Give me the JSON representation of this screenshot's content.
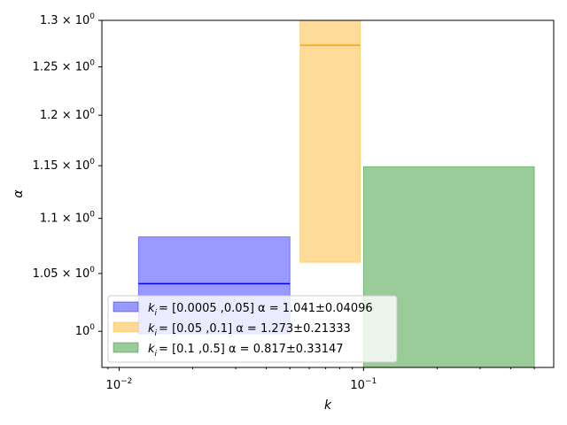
{
  "chart_data": {
    "type": "bar",
    "xscale": "log",
    "yscale": "log",
    "xlabel": "k",
    "ylabel": "α",
    "xlim": [
      0.0085,
      0.6
    ],
    "ylim": [
      0.97,
      1.3
    ],
    "grid": false,
    "legend_position": "lower-left",
    "x_ticks": [
      {
        "value": 0.01,
        "base": "10",
        "exp": "−2"
      },
      {
        "value": 0.1,
        "base": "10",
        "exp": "−1"
      }
    ],
    "y_ticks": [
      {
        "value": 1.0,
        "mant": "",
        "exp": "0"
      },
      {
        "value": 1.05,
        "mant": "1.05 × ",
        "exp": "0"
      },
      {
        "value": 1.1,
        "mant": "1.1 × ",
        "exp": "0"
      },
      {
        "value": 1.15,
        "mant": "1.15 × ",
        "exp": "0"
      },
      {
        "value": 1.2,
        "mant": "1.2 × ",
        "exp": "0"
      },
      {
        "value": 1.25,
        "mant": "1.25 × ",
        "exp": "0"
      },
      {
        "value": 1.3,
        "mant": "1.3 × ",
        "exp": "0"
      }
    ],
    "series": [
      {
        "k_min": 0.012,
        "k_max": 0.05,
        "band_low": 0.998,
        "band_high": 1.083,
        "alpha": 1.041,
        "color": "#0000ff",
        "legend": {
          "prefix": "k",
          "sub": "i",
          "rest": "= [0.0005 ,0.05] α = 1.041±0.04096"
        }
      },
      {
        "k_min": 0.055,
        "k_max": 0.097,
        "band_low": 1.06,
        "band_high": 1.3,
        "alpha": 1.273,
        "color": "#ffa500",
        "legend": {
          "prefix": "k",
          "sub": "i",
          "rest": "= [0.05 ,0.1] α = 1.273±0.21333"
        }
      },
      {
        "k_min": 0.1,
        "k_max": 0.5,
        "band_low": 0.97,
        "band_high": 1.149,
        "alpha": 0.817,
        "color": "#008000",
        "legend": {
          "prefix": "k",
          "sub": "i",
          "rest": "= [0.1 ,0.5] α = 0.817±0.33147"
        }
      }
    ]
  }
}
